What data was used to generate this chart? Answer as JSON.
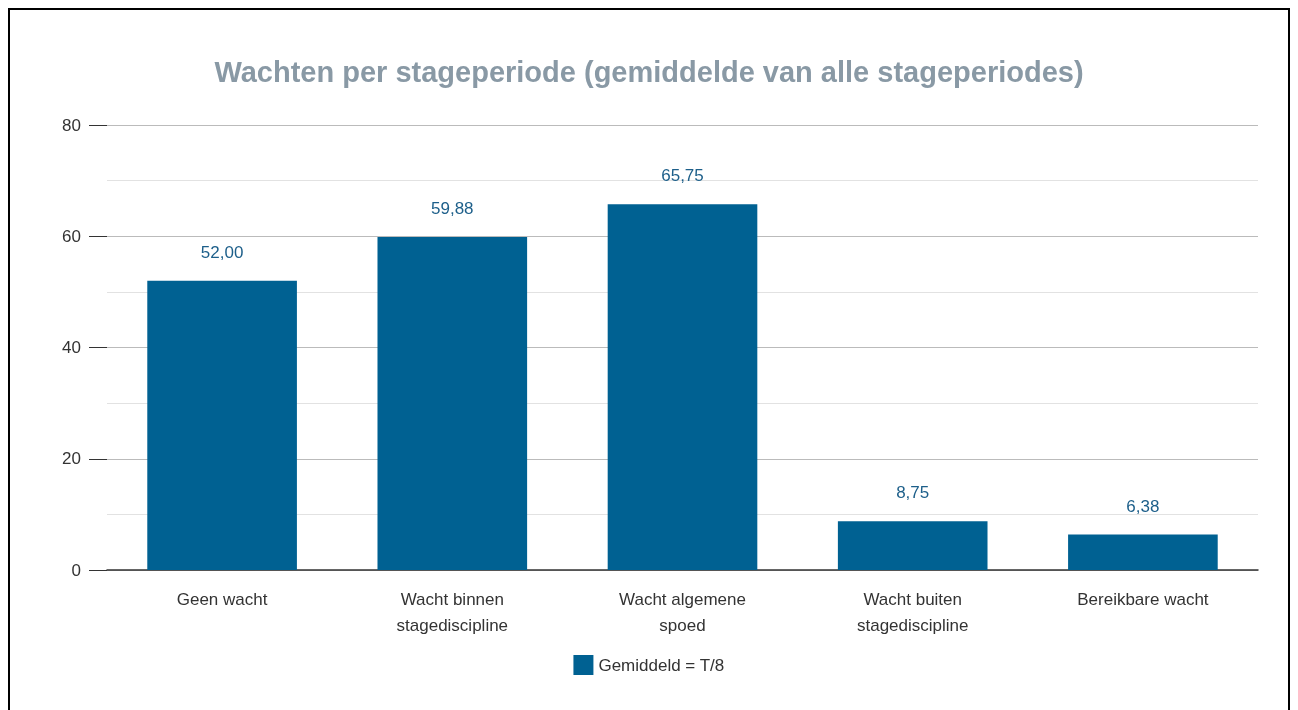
{
  "chart_data": {
    "type": "bar",
    "title": "Wachten per stageperiode (gemiddelde van alle stageperiodes)",
    "categories": [
      "Geen wacht",
      "Wacht binnen\nstagediscipline",
      "Wacht algemene\nspoed",
      "Wacht buiten\nstagediscipline",
      "Bereikbare wacht"
    ],
    "series": [
      {
        "name": "Gemiddeld = T/8",
        "color": "#006192",
        "values": [
          52,
          59.88,
          65.75,
          8.75,
          6.38
        ],
        "value_labels": [
          "52,00",
          "59,88",
          "65,75",
          "8,75",
          "6,38"
        ]
      }
    ],
    "ylim": [
      0,
      80
    ],
    "yticks": [
      0,
      20,
      40,
      60,
      80
    ],
    "grid": "y",
    "legend": "bottom"
  }
}
